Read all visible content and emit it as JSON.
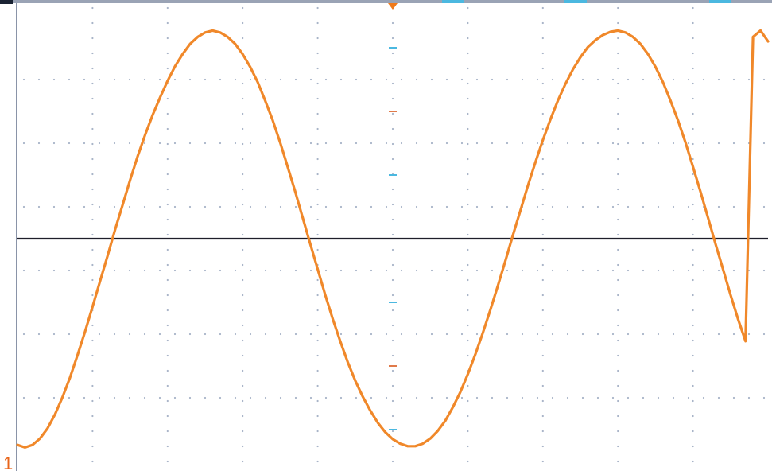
{
  "colors": {
    "trace": "#f0882a",
    "baseline": "#1e1e2a",
    "grid": "#a8b4c8",
    "frame": "#8a94a8",
    "trigger_marker": "#f07a1a",
    "status_bar_accent": "#4bb8e0",
    "center_ticks": [
      "#4bb8e0",
      "#e07a4a"
    ]
  },
  "screen": {
    "channel_label": "1",
    "channel_label_color": "#e8641a"
  },
  "icons": {
    "trigger_marker": "trigger-position-marker-icon",
    "channel_marker": "channel-1-ground-marker-icon"
  },
  "chart_data": {
    "type": "line",
    "title": "",
    "xlabel": "",
    "ylabel": "",
    "grid": true,
    "grid_divisions": {
      "x": 10,
      "y": 7
    },
    "xlim": [
      0,
      10
    ],
    "ylim": [
      -3.5,
      3.5
    ],
    "series": [
      {
        "x": [
          0,
          0.1,
          0.2,
          0.3,
          0.4,
          0.5,
          0.6,
          0.7,
          0.8,
          0.9,
          1.0,
          1.1,
          1.2,
          1.3,
          1.4,
          1.5,
          1.6,
          1.7,
          1.8,
          1.9,
          2.0,
          2.1,
          2.2,
          2.3,
          2.4,
          2.5,
          2.6,
          2.7,
          2.8,
          2.9,
          3.0,
          3.1,
          3.2,
          3.3,
          3.4,
          3.5,
          3.6,
          3.7,
          3.8,
          3.9,
          4.0,
          4.1,
          4.2,
          4.3,
          4.4,
          4.5,
          4.6,
          4.7,
          4.8,
          4.9,
          5.0,
          5.1,
          5.2,
          5.3,
          5.4,
          5.5,
          5.6,
          5.7,
          5.8,
          5.9,
          6.0,
          6.1,
          6.2,
          6.3,
          6.4,
          6.5,
          6.6,
          6.7,
          6.8,
          6.9,
          7.0,
          7.1,
          7.2,
          7.3,
          7.4,
          7.5,
          7.6,
          7.7,
          7.8,
          7.9,
          8.0,
          8.1,
          8.2,
          8.3,
          8.4,
          8.5,
          8.6,
          8.7,
          8.8,
          8.9,
          9.0,
          9.1,
          9.2,
          9.3,
          9.4,
          9.5,
          9.6,
          9.7,
          9.8,
          9.9,
          10.0
        ],
        "y": [
          -3.24,
          -3.28,
          -3.24,
          -3.14,
          -2.98,
          -2.76,
          -2.49,
          -2.18,
          -1.83,
          -1.46,
          -1.07,
          -0.67,
          -0.27,
          0.14,
          0.53,
          0.92,
          1.29,
          1.63,
          1.94,
          2.22,
          2.48,
          2.71,
          2.9,
          3.06,
          3.17,
          3.24,
          3.27,
          3.24,
          3.17,
          3.06,
          2.9,
          2.7,
          2.46,
          2.17,
          1.86,
          1.51,
          1.13,
          0.74,
          0.33,
          -0.08,
          -0.48,
          -0.88,
          -1.26,
          -1.61,
          -1.94,
          -2.23,
          -2.48,
          -2.7,
          -2.89,
          -3.04,
          -3.15,
          -3.22,
          -3.26,
          -3.26,
          -3.22,
          -3.14,
          -3.02,
          -2.86,
          -2.65,
          -2.41,
          -2.13,
          -1.82,
          -1.48,
          -1.12,
          -0.74,
          -0.35,
          0.05,
          0.44,
          0.83,
          1.2,
          1.55,
          1.87,
          2.17,
          2.43,
          2.66,
          2.85,
          3.01,
          3.12,
          3.2,
          3.25,
          3.27,
          3.24,
          3.17,
          3.06,
          2.9,
          2.7,
          2.46,
          2.17,
          1.86,
          1.51,
          1.13,
          0.74,
          0.33,
          -0.08,
          -0.48,
          -0.88,
          -1.26,
          -1.61,
          3.17,
          3.27,
          3.1
        ]
      },
      {
        "x": [
          0,
          10
        ],
        "y": [
          0,
          0
        ]
      }
    ]
  }
}
